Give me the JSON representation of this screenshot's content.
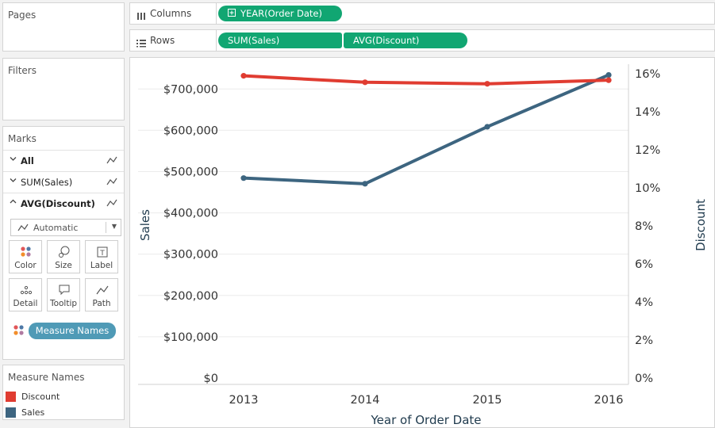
{
  "left_panel": {
    "pages_title": "Pages",
    "filters_title": "Filters",
    "marks": {
      "title": "Marks",
      "rows": [
        {
          "label": "All",
          "chevron": "down",
          "icon": "line-icon"
        },
        {
          "label": "SUM(Sales)",
          "chevron": "down",
          "icon": "line-icon"
        },
        {
          "label": "AVG(Discount)",
          "chevron": "up",
          "icon": "line-icon"
        }
      ],
      "mark_type": "Automatic",
      "buttons": [
        {
          "label": "Color",
          "icon": "color-icon"
        },
        {
          "label": "Size",
          "icon": "size-icon"
        },
        {
          "label": "Label",
          "icon": "label-icon"
        },
        {
          "label": "Detail",
          "icon": "detail-icon"
        },
        {
          "label": "Tooltip",
          "icon": "tooltip-icon"
        },
        {
          "label": "Path",
          "icon": "path-icon"
        }
      ],
      "color_pill": "Measure Names"
    },
    "legend": {
      "title": "Measure Names",
      "items": [
        {
          "label": "Discount",
          "color": "#e03c31"
        },
        {
          "label": "Sales",
          "color": "#3d6580"
        }
      ]
    }
  },
  "shelves": {
    "columns": {
      "label": "Columns",
      "pills": [
        "YEAR(Order Date)"
      ]
    },
    "rows": {
      "label": "Rows",
      "pills": [
        "SUM(Sales)",
        "AVG(Discount)"
      ]
    }
  },
  "colors": {
    "pill_green": "#11a672",
    "pill_teal": "#4f9ab6",
    "discount": "#e03c31",
    "sales": "#3d6580"
  },
  "chart_data": {
    "type": "line",
    "categories": [
      "2013",
      "2014",
      "2015",
      "2016"
    ],
    "xlabel": "Year of Order Date",
    "ylabel_left": "Sales",
    "ylabel_right": "Discount",
    "left_axis": {
      "ylim": [
        0,
        760000
      ],
      "ticks": [
        0,
        100000,
        200000,
        300000,
        400000,
        500000,
        600000,
        700000
      ],
      "tick_labels": [
        "$0",
        "$100,000",
        "$200,000",
        "$300,000",
        "$400,000",
        "$500,000",
        "$600,000",
        "$700,000"
      ]
    },
    "right_axis": {
      "ylim": [
        0,
        0.165
      ],
      "ticks": [
        0,
        0.02,
        0.04,
        0.06,
        0.08,
        0.1,
        0.12,
        0.14,
        0.16
      ],
      "tick_labels": [
        "0%",
        "2%",
        "4%",
        "6%",
        "8%",
        "10%",
        "12%",
        "14%",
        "16%"
      ]
    },
    "series": [
      {
        "name": "Sales",
        "axis": "left",
        "values": [
          484247,
          470533,
          608473,
          733947
        ],
        "color": "#3d6580"
      },
      {
        "name": "Discount",
        "axis": "right",
        "values": [
          0.1589,
          0.1555,
          0.1547,
          0.1566
        ],
        "color": "#e03c31"
      }
    ],
    "grid": true
  }
}
